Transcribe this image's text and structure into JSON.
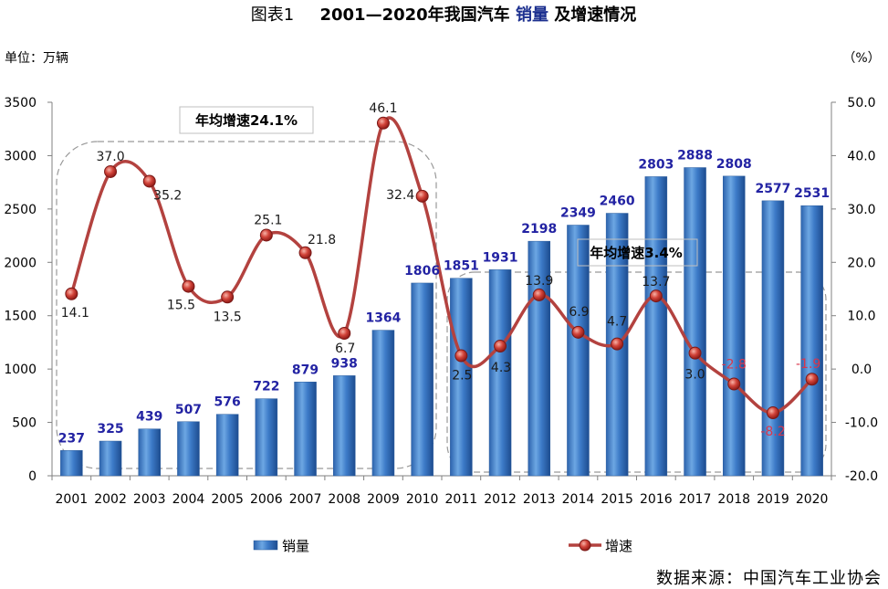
{
  "title": {
    "label": "图表1",
    "before": "2001—2020年我国汽车",
    "highlight": "销量",
    "after": "及增速情况"
  },
  "source": "数据来源：中国汽车工业协会",
  "colors": {
    "bar": "#3672bf",
    "bar_label": "#2323a3",
    "line": "#b3423f",
    "marker_outline": "#7a1a18",
    "line_label": "#1a1a1a",
    "negative_label": "#d9364c",
    "title_highlight": "#1b2f8f",
    "axis": "#808080",
    "dashed_box": "#999999",
    "annotation_border": "#bfbfbf"
  },
  "chart_data": {
    "type": "bar",
    "categories": [
      "2001",
      "2002",
      "2003",
      "2004",
      "2005",
      "2006",
      "2007",
      "2008",
      "2009",
      "2010",
      "2011",
      "2012",
      "2013",
      "2014",
      "2015",
      "2016",
      "2017",
      "2018",
      "2019",
      "2020"
    ],
    "series": [
      {
        "name": "销量",
        "type": "bar",
        "axis": "left",
        "values": [
          237,
          325,
          439,
          507,
          576,
          722,
          879,
          938,
          1364,
          1806,
          1851,
          1931,
          2198,
          2349,
          2460,
          2803,
          2888,
          2808,
          2577,
          2531
        ]
      },
      {
        "name": "增速",
        "type": "line",
        "axis": "right",
        "values": [
          14.1,
          37.0,
          35.2,
          15.5,
          13.5,
          25.1,
          21.8,
          6.7,
          46.1,
          32.4,
          2.5,
          4.3,
          13.9,
          6.9,
          4.7,
          13.7,
          3.0,
          -2.8,
          -8.2,
          -1.9
        ]
      }
    ],
    "y_left": {
      "label": "单位：万辆",
      "range": [
        0,
        3500
      ],
      "ticks": [
        "0",
        "500",
        "1000",
        "1500",
        "2000",
        "2500",
        "3000",
        "3500"
      ]
    },
    "y_right": {
      "label": "（%）",
      "range": [
        -20,
        50
      ],
      "ticks": [
        "-20.0",
        "-10.0",
        "0.0",
        "10.0",
        "20.0",
        "30.0",
        "40.0",
        "50.0"
      ]
    },
    "annotations": [
      "年均增速24.1%",
      "年均增速3.4%"
    ],
    "grid": false,
    "legend": "bottom"
  }
}
